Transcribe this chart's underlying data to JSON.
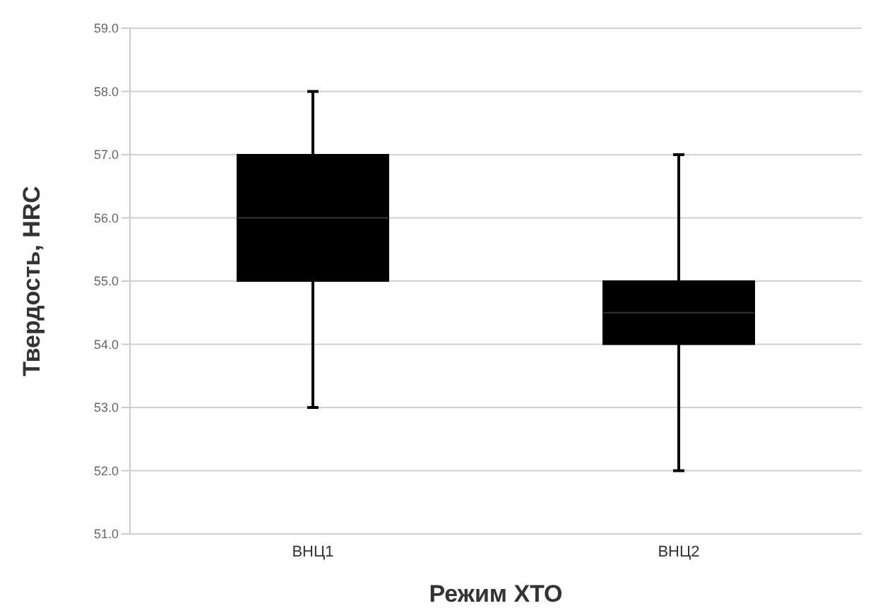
{
  "chart_data": {
    "type": "box",
    "xlabel": "Режим ХТО",
    "ylabel": "Твердость, HRC",
    "categories": [
      "ВНЦ1",
      "ВНЦ2"
    ],
    "color": "#000000",
    "boxes": [
      {
        "low": 53,
        "q1": 55,
        "median": 56,
        "q3": 57,
        "high": 58
      },
      {
        "low": 52,
        "q1": 54,
        "median": 54.5,
        "q3": 55,
        "high": 57
      }
    ],
    "ylim": [
      51,
      59
    ],
    "yticks": [
      {
        "value": 51,
        "label": "51.0"
      },
      {
        "value": 52,
        "label": "52.0"
      },
      {
        "value": 53,
        "label": "53.0"
      },
      {
        "value": 54,
        "label": "54.0"
      },
      {
        "value": 55,
        "label": "55.0"
      },
      {
        "value": 56,
        "label": "56.0"
      },
      {
        "value": 57,
        "label": "57.0"
      },
      {
        "value": 58,
        "label": "58.0"
      },
      {
        "value": 59,
        "label": "59.0"
      }
    ],
    "grid": "y"
  }
}
